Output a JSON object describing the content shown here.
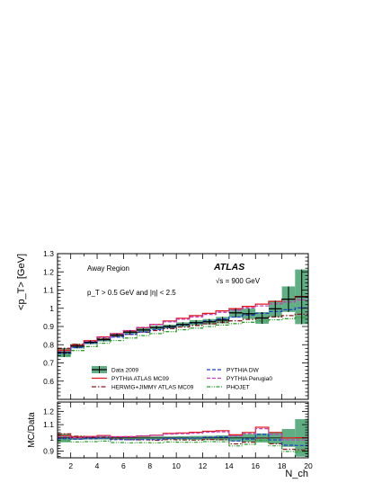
{
  "chart_data": [
    {
      "type": "line",
      "panel": "main",
      "ylabel": "<p_T> [GeV]",
      "ylim": [
        0.5,
        1.3
      ],
      "xlim": [
        1,
        20
      ],
      "yticks": [
        "0.6",
        "0.7",
        "0.8",
        "0.9",
        "1",
        "1.1",
        "1.2",
        "1.3"
      ],
      "annotations": {
        "region": "Away Region",
        "experiment": "ATLAS",
        "energy": "√s = 900 GeV",
        "cuts": "p_T > 0.5  GeV and |η| < 2.5"
      },
      "legend_placement": "bottom-center",
      "data": {
        "name": "Data 2009",
        "color": "#000000",
        "band_color": "#5fae84",
        "x": [
          1.5,
          2.5,
          3.5,
          4.5,
          5.5,
          6.5,
          7.5,
          8.5,
          9.5,
          10.5,
          11.5,
          12.5,
          13.5,
          14.5,
          15.5,
          16.5,
          17.5,
          18.5,
          19.5
        ],
        "y": [
          0.757,
          0.792,
          0.813,
          0.828,
          0.853,
          0.869,
          0.881,
          0.894,
          0.9,
          0.911,
          0.921,
          0.926,
          0.935,
          0.975,
          0.97,
          0.947,
          0.997,
          1.05,
          1.063
        ],
        "err": [
          0.025,
          0.012,
          0.01,
          0.01,
          0.01,
          0.01,
          0.01,
          0.01,
          0.01,
          0.012,
          0.014,
          0.015,
          0.018,
          0.025,
          0.028,
          0.032,
          0.045,
          0.07,
          0.15
        ]
      },
      "series": [
        {
          "name": "PYTHIA ATLAS MC09",
          "color": "#e41a1c",
          "style": "solid",
          "values": [
            0.77,
            0.797,
            0.822,
            0.843,
            0.861,
            0.877,
            0.893,
            0.912,
            0.93,
            0.945,
            0.96,
            0.972,
            0.986,
            0.998,
            1.01,
            1.023,
            1.038,
            1.05,
            1.065
          ]
        },
        {
          "name": "HERWIG+JIMMY ATLAS MC09",
          "color": "#8b1a1a",
          "style": "dashdot",
          "values": [
            0.78,
            0.802,
            0.818,
            0.832,
            0.845,
            0.857,
            0.868,
            0.878,
            0.888,
            0.897,
            0.906,
            0.915,
            0.923,
            0.931,
            0.939,
            0.946,
            0.953,
            0.96,
            0.967
          ]
        },
        {
          "name": "PYTHIA DW",
          "color": "#1f3fcf",
          "style": "dashed",
          "values": [
            0.752,
            0.784,
            0.808,
            0.826,
            0.842,
            0.857,
            0.87,
            0.883,
            0.896,
            0.908,
            0.919,
            0.93,
            0.941,
            0.952,
            0.962,
            0.972,
            0.982,
            0.992,
            1.002
          ]
        },
        {
          "name": "PYTHIA Perugia0",
          "color": "#c040c0",
          "style": "dashed",
          "values": [
            0.762,
            0.793,
            0.818,
            0.84,
            0.86,
            0.878,
            0.895,
            0.911,
            0.926,
            0.94,
            0.953,
            0.966,
            0.978,
            0.99,
            1.002,
            1.013,
            1.024,
            1.035,
            1.046
          ]
        },
        {
          "name": "PHOJET",
          "color": "#2e9e2e",
          "style": "dashdotdot",
          "values": [
            0.74,
            0.768,
            0.79,
            0.808,
            0.823,
            0.837,
            0.85,
            0.861,
            0.872,
            0.882,
            0.891,
            0.9,
            0.908,
            0.916,
            0.923,
            0.93,
            0.937,
            0.943,
            0.95
          ]
        }
      ]
    },
    {
      "type": "line",
      "panel": "ratio",
      "ylabel": "MC/Data",
      "xlabel": "N_ch",
      "ylim": [
        0.85,
        1.27
      ],
      "xlim": [
        1,
        20
      ],
      "yticks": [
        "0.9",
        "1",
        "1.1",
        "1.2"
      ],
      "xticks": [
        "2",
        "4",
        "6",
        "8",
        "10",
        "12",
        "14",
        "16",
        "18",
        "20"
      ],
      "ratio_band_rel": [
        0.033,
        0.015,
        0.012,
        0.012,
        0.012,
        0.012,
        0.011,
        0.011,
        0.011,
        0.013,
        0.015,
        0.016,
        0.019,
        0.026,
        0.029,
        0.034,
        0.045,
        0.067,
        0.141
      ]
    }
  ]
}
